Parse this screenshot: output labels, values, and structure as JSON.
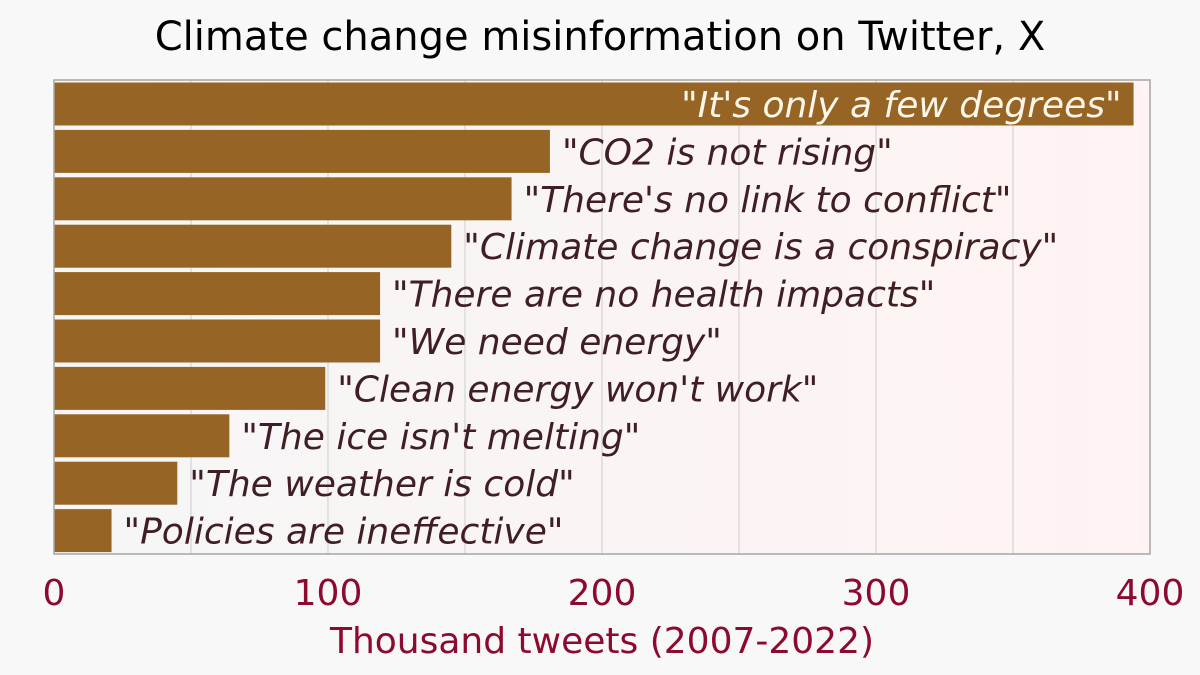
{
  "chart_data": {
    "type": "bar",
    "orientation": "horizontal",
    "title": "Climate change misinformation on Twitter, X",
    "xlabel": "Thousand tweets (2007-2022)",
    "ylabel": "",
    "xlim": [
      0,
      400
    ],
    "xticks": [
      "0",
      "100",
      "200",
      "300",
      "400"
    ],
    "grid": true,
    "categories": [
      "\"It's only a few degrees\"",
      "\"CO2 is not rising\"",
      "\"There's no link to conflict\"",
      "\"Climate change is a conspiracy\"",
      "\"There are no health impacts\"",
      "\"We need energy\"",
      "\"Clean energy won't work\"",
      "\"The ice isn't melting\"",
      "\"The weather is cold\"",
      "\"Policies are ineffective\""
    ],
    "values": [
      394,
      181,
      167,
      145,
      119,
      119,
      99,
      64,
      45,
      21
    ],
    "colors": {
      "bar": "#966525",
      "label_dark": "#3f1e24",
      "label_light": "#fff6ea",
      "axis_text": "#8c0a2d",
      "plot_bg_start": "#f6f6f6",
      "plot_bg_end": "#fff3f3",
      "page_bg": "#f8f8f8",
      "grid": "#d4d4d4",
      "frame": "#a5a5a5"
    }
  }
}
